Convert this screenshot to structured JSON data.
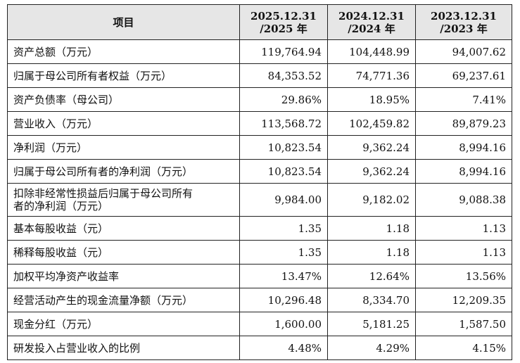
{
  "table": {
    "header": [
      [
        "项目"
      ],
      [
        "2025.12.31",
        "/2025 年"
      ],
      [
        "2024.12.31",
        "/2024 年"
      ],
      [
        "2023.12.31",
        "/2023 年"
      ]
    ],
    "rows": [
      [
        [
          "资产总额（万元）"
        ],
        "119,764.94",
        "104,448.99",
        "94,007.62"
      ],
      [
        [
          "归属于母公司所有者权益（万元）"
        ],
        "84,353.52",
        "74,771.36",
        "69,237.61"
      ],
      [
        [
          "资产负债率（母公司）"
        ],
        "29.86%",
        "18.95%",
        "7.41%"
      ],
      [
        [
          "营业收入（万元）"
        ],
        "113,568.72",
        "102,459.82",
        "89,879.23"
      ],
      [
        [
          "净利润（万元）"
        ],
        "10,823.54",
        "9,362.24",
        "8,994.16"
      ],
      [
        [
          "归属于母公司所有者的净利润（万元）"
        ],
        "10,823.54",
        "9,362.24",
        "8,994.16"
      ],
      [
        [
          "扣除非经常性损益后归属于母公司所有",
          "者的净利润（万元）"
        ],
        "9,984.00",
        "9,182.02",
        "9,088.38"
      ],
      [
        [
          "基本每股收益（元）"
        ],
        "1.35",
        "1.18",
        "1.13"
      ],
      [
        [
          "稀释每股收益（元）"
        ],
        "1.35",
        "1.18",
        "1.13"
      ],
      [
        [
          "加权平均净资产收益率"
        ],
        "13.47%",
        "12.64%",
        "13.56%"
      ],
      [
        [
          "经营活动产生的现金流量净额（万元）"
        ],
        "10,296.48",
        "8,334.70",
        "12,209.35"
      ],
      [
        [
          "现金分红（万元）"
        ],
        "1,600.00",
        "5,181.25",
        "1,587.50"
      ],
      [
        [
          "研发投入占营业收入的比例"
        ],
        "4.48%",
        "4.29%",
        "4.15%"
      ]
    ]
  }
}
